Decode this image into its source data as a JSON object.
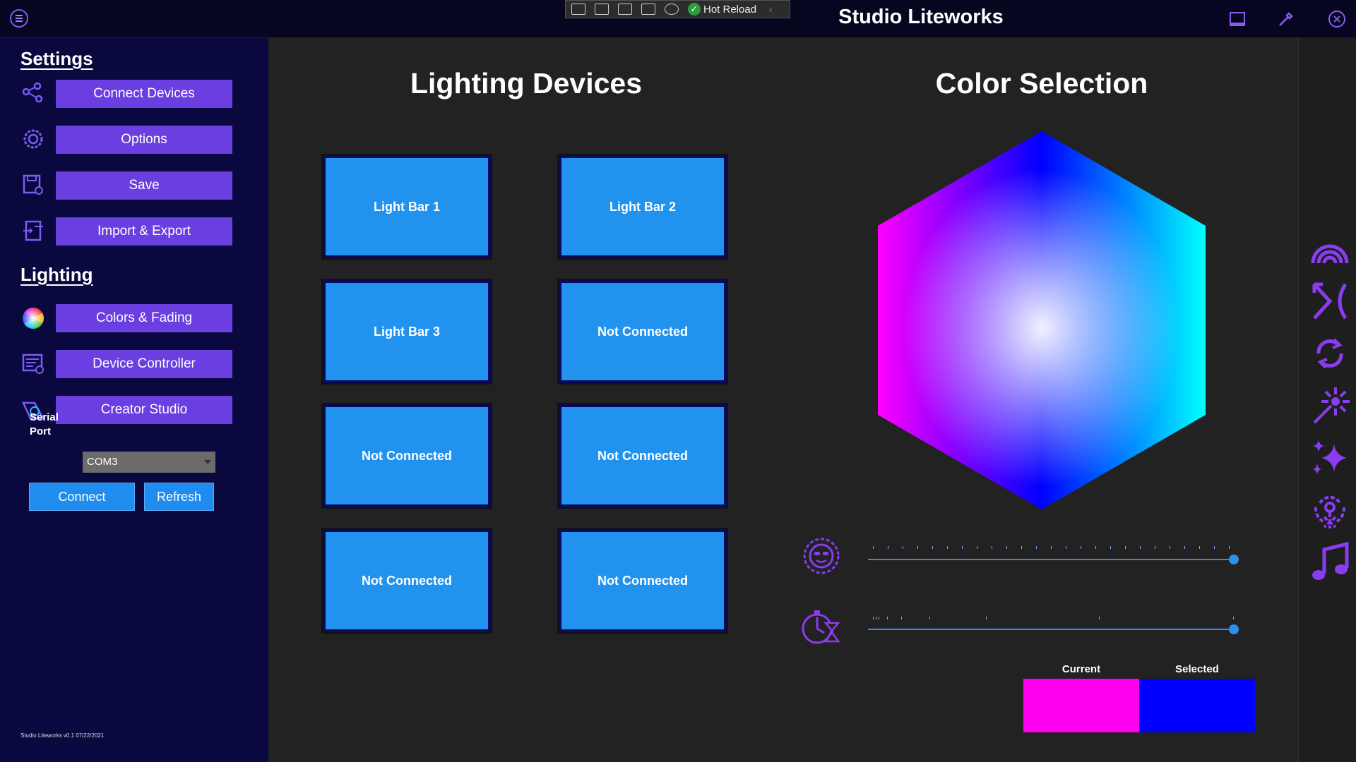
{
  "app": {
    "title": "Studio Liteworks"
  },
  "hot_reload": {
    "label": "Hot Reload"
  },
  "sidebar": {
    "settings_title": "Settings",
    "lighting_title": "Lighting",
    "settings_items": [
      {
        "label": "Connect Devices",
        "icon": "share-nodes-icon"
      },
      {
        "label": "Options",
        "icon": "gear-icon"
      },
      {
        "label": "Save",
        "icon": "save-icon"
      },
      {
        "label": "Import & Export",
        "icon": "import-export-icon"
      }
    ],
    "lighting_items": [
      {
        "label": "Colors & Fading",
        "icon": "color-wheel-icon"
      },
      {
        "label": "Device Controller",
        "icon": "controller-icon"
      },
      {
        "label": "Creator Studio",
        "icon": "creator-icon"
      }
    ],
    "serial_port_label_1": "Serial",
    "serial_port_label_2": "Port",
    "serial_port_value": "COM3",
    "connect_label": "Connect",
    "refresh_label": "Refresh",
    "version_text": "Studio Liteworks v0.1   07/22/2021"
  },
  "devices": {
    "title": "Lighting Devices",
    "tiles": [
      "Light Bar 1",
      "Light Bar 2",
      "Light Bar 3",
      "Not Connected",
      "Not Connected",
      "Not Connected",
      "Not Connected",
      "Not Connected"
    ]
  },
  "color": {
    "title": "Color Selection",
    "brightness_level": 1.0,
    "speed_level": 1.0,
    "current_label": "Current",
    "selected_label": "Selected",
    "current_color": "#ff00ee",
    "selected_color": "#0000ff"
  },
  "right_rail_icons": [
    "rainbow-icon",
    "crossfade-icon",
    "cycle-icon",
    "burst-icon",
    "sparkle-icon",
    "ripple-icon",
    "music-icon"
  ],
  "colors": {
    "accent": "#6a3ee0",
    "blue": "#2292ef",
    "sidebar_bg": "#090940",
    "icon_purple": "#8a3cf0"
  }
}
